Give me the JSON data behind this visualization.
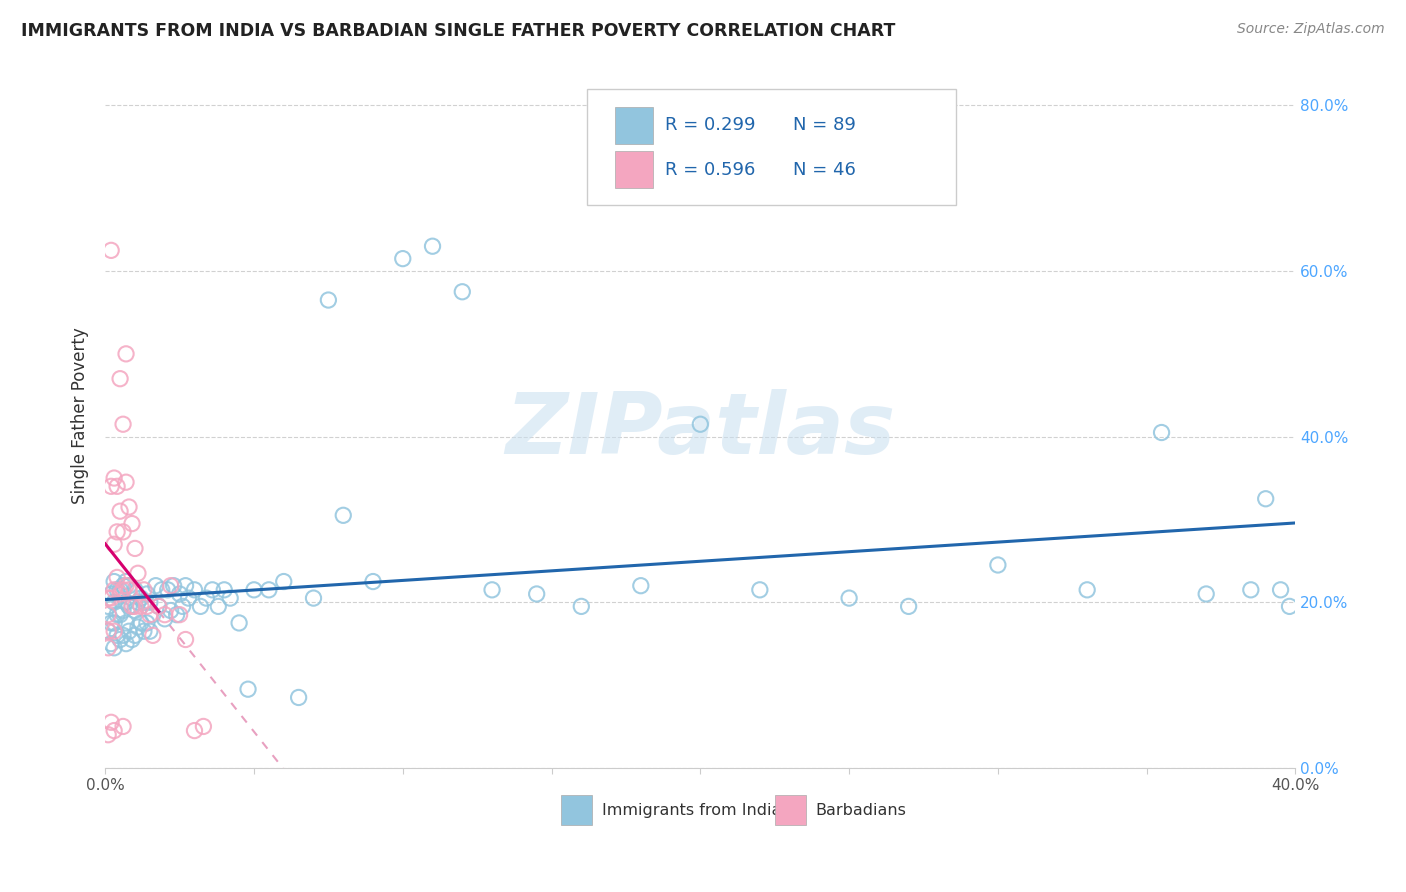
{
  "title": "IMMIGRANTS FROM INDIA VS BARBADIAN SINGLE FATHER POVERTY CORRELATION CHART",
  "source": "Source: ZipAtlas.com",
  "ylabel_label": "Single Father Poverty",
  "xlim": [
    0,
    0.4
  ],
  "ylim": [
    0,
    0.85
  ],
  "blue_color": "#92c5de",
  "pink_color": "#f4a6c0",
  "trendline_blue_color": "#2166ac",
  "trendline_pink_color": "#d6006e",
  "trendline_pink_dash_color": "#e8a0c0",
  "legend_r1": "R = 0.299",
  "legend_n1": "N = 89",
  "legend_r2": "R = 0.596",
  "legend_n2": "N = 46",
  "legend_text_color": "#2166ac",
  "watermark": "ZIPatlas",
  "india_x": [
    0.001,
    0.001,
    0.002,
    0.002,
    0.002,
    0.003,
    0.003,
    0.003,
    0.003,
    0.004,
    0.004,
    0.004,
    0.005,
    0.005,
    0.005,
    0.006,
    0.006,
    0.006,
    0.007,
    0.007,
    0.007,
    0.007,
    0.008,
    0.008,
    0.008,
    0.009,
    0.009,
    0.01,
    0.01,
    0.01,
    0.011,
    0.011,
    0.012,
    0.012,
    0.013,
    0.013,
    0.014,
    0.014,
    0.015,
    0.015,
    0.016,
    0.017,
    0.018,
    0.019,
    0.02,
    0.021,
    0.022,
    0.023,
    0.024,
    0.025,
    0.026,
    0.027,
    0.028,
    0.03,
    0.032,
    0.034,
    0.036,
    0.038,
    0.04,
    0.042,
    0.045,
    0.048,
    0.05,
    0.055,
    0.06,
    0.065,
    0.07,
    0.075,
    0.08,
    0.09,
    0.1,
    0.11,
    0.12,
    0.13,
    0.145,
    0.16,
    0.18,
    0.2,
    0.22,
    0.25,
    0.27,
    0.3,
    0.33,
    0.355,
    0.37,
    0.385,
    0.39,
    0.395,
    0.398
  ],
  "india_y": [
    0.165,
    0.195,
    0.15,
    0.175,
    0.21,
    0.145,
    0.175,
    0.2,
    0.225,
    0.16,
    0.185,
    0.215,
    0.155,
    0.185,
    0.215,
    0.16,
    0.19,
    0.22,
    0.15,
    0.175,
    0.2,
    0.225,
    0.165,
    0.195,
    0.22,
    0.155,
    0.195,
    0.16,
    0.19,
    0.215,
    0.17,
    0.2,
    0.175,
    0.205,
    0.165,
    0.2,
    0.175,
    0.21,
    0.165,
    0.2,
    0.185,
    0.22,
    0.195,
    0.215,
    0.18,
    0.215,
    0.19,
    0.22,
    0.185,
    0.21,
    0.195,
    0.22,
    0.205,
    0.215,
    0.195,
    0.205,
    0.215,
    0.195,
    0.215,
    0.205,
    0.175,
    0.095,
    0.215,
    0.215,
    0.225,
    0.085,
    0.205,
    0.565,
    0.305,
    0.225,
    0.615,
    0.63,
    0.575,
    0.215,
    0.21,
    0.195,
    0.22,
    0.415,
    0.215,
    0.205,
    0.195,
    0.245,
    0.215,
    0.405,
    0.21,
    0.215,
    0.325,
    0.215,
    0.195
  ],
  "barbados_x": [
    0.001,
    0.001,
    0.001,
    0.001,
    0.001,
    0.002,
    0.002,
    0.002,
    0.002,
    0.003,
    0.003,
    0.003,
    0.003,
    0.003,
    0.004,
    0.004,
    0.004,
    0.005,
    0.005,
    0.005,
    0.006,
    0.006,
    0.006,
    0.006,
    0.007,
    0.007,
    0.007,
    0.008,
    0.008,
    0.009,
    0.009,
    0.01,
    0.01,
    0.011,
    0.012,
    0.013,
    0.014,
    0.015,
    0.016,
    0.018,
    0.02,
    0.022,
    0.025,
    0.027,
    0.03,
    0.033
  ],
  "barbados_y": [
    0.205,
    0.185,
    0.165,
    0.145,
    0.04,
    0.625,
    0.34,
    0.205,
    0.055,
    0.35,
    0.27,
    0.215,
    0.165,
    0.045,
    0.34,
    0.285,
    0.23,
    0.47,
    0.31,
    0.21,
    0.415,
    0.285,
    0.215,
    0.05,
    0.5,
    0.345,
    0.22,
    0.315,
    0.215,
    0.295,
    0.195,
    0.265,
    0.195,
    0.235,
    0.195,
    0.215,
    0.195,
    0.185,
    0.16,
    0.195,
    0.185,
    0.22,
    0.185,
    0.155,
    0.045,
    0.05
  ]
}
